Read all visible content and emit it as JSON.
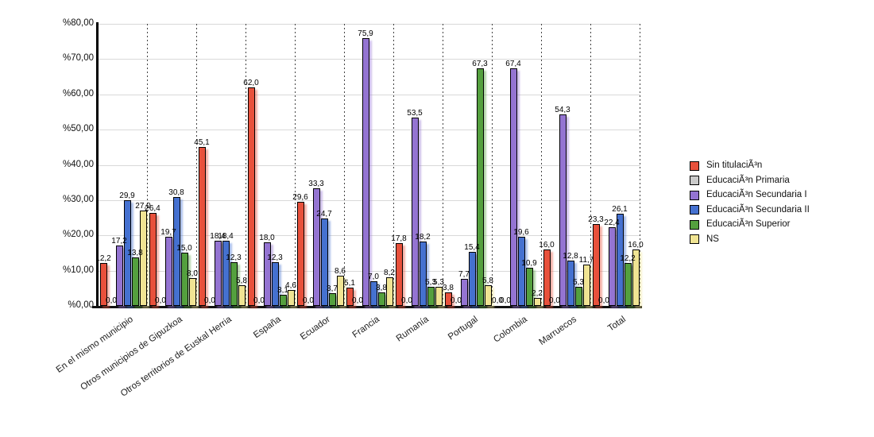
{
  "chart_data": {
    "type": "bar",
    "title": "",
    "xlabel": "",
    "ylabel": "",
    "ylim": [
      0,
      80
    ],
    "y_tick_step": 10,
    "y_tick_labels": [
      "%0,00",
      "%10,00",
      "%20,00",
      "%30,00",
      "%40,00",
      "%50,00",
      "%60,00",
      "%70,00",
      "%80,00"
    ],
    "grid": {
      "horizontal_lines": true,
      "vertical_dotted_group_separators": true
    },
    "legend_position": "right",
    "value_label_format": "comma-decimal-1",
    "categories": [
      "En el mismo municipio",
      "Otros municipios de Gipuzkoa",
      "Otros territorios de Euskal Herria",
      "España",
      "Ecuador",
      "Francia",
      "Rumanía",
      "Portugal",
      "Colombia",
      "Marruecos",
      "Total"
    ],
    "series": [
      {
        "name": "Sin titulaciÃ³n",
        "color": "#e8513c",
        "values": [
          12.2,
          26.4,
          45.1,
          62.0,
          29.6,
          5.1,
          17.8,
          3.8,
          0.0,
          16.0,
          23.3
        ]
      },
      {
        "name": "EducaciÃ³n Primaria",
        "color": "#cacaca",
        "values": [
          0.0,
          0.0,
          0.0,
          0.0,
          0.0,
          0.0,
          0.0,
          0.0,
          0.0,
          0.0,
          0.0
        ]
      },
      {
        "name": "EducaciÃ³n Secundaria I",
        "color": "#9474d2",
        "values": [
          17.2,
          19.7,
          18.4,
          18.0,
          33.3,
          75.9,
          53.5,
          7.7,
          67.4,
          54.3,
          22.4
        ]
      },
      {
        "name": "EducaciÃ³n Secundaria II",
        "color": "#4571d0",
        "values": [
          29.9,
          30.8,
          18.4,
          12.3,
          24.7,
          7.0,
          18.2,
          15.4,
          19.6,
          12.8,
          26.1
        ]
      },
      {
        "name": "EducaciÃ³n Superior",
        "color": "#54a03e",
        "values": [
          13.8,
          15.0,
          12.3,
          3.1,
          3.7,
          3.8,
          5.3,
          67.3,
          10.9,
          5.3,
          12.2
        ]
      },
      {
        "name": "NS",
        "color": "#f0e493",
        "values": [
          27.0,
          8.0,
          5.8,
          4.6,
          8.6,
          8.2,
          5.3,
          5.8,
          2.2,
          11.7,
          16.0
        ]
      }
    ]
  }
}
